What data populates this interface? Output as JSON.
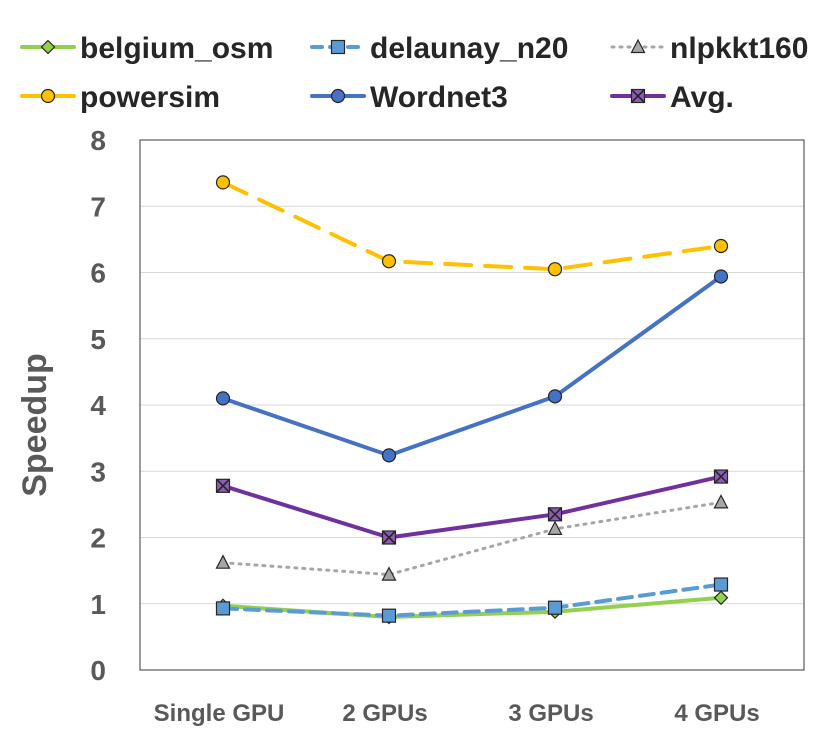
{
  "chart_data": {
    "type": "line",
    "title": "",
    "xlabel": "",
    "ylabel": "Speedup",
    "ylim": [
      0,
      8
    ],
    "yticks": [
      "0",
      "1",
      "2",
      "3",
      "4",
      "5",
      "6",
      "7",
      "8"
    ],
    "grid": true,
    "legend_position": "top",
    "categories": [
      "Single GPU",
      "2 GPUs",
      "3 GPUs",
      "4 GPUs"
    ],
    "series": [
      {
        "name": "belgium_osm",
        "values": [
          0.97,
          0.8,
          0.88,
          1.09
        ],
        "color": "#92d050",
        "marker": "diamond",
        "dash": "solid",
        "marker_fill": "#92d050"
      },
      {
        "name": "delaunay_n20",
        "values": [
          0.93,
          0.82,
          0.94,
          1.29
        ],
        "color": "#5b9bd5",
        "marker": "square",
        "dash": "dashed",
        "marker_fill": "#5b9bd5"
      },
      {
        "name": "nlpkkt160",
        "values": [
          1.62,
          1.44,
          2.13,
          2.53
        ],
        "color": "#a6a6a6",
        "marker": "triangle",
        "dash": "dotted",
        "marker_fill": "#a6a6a6"
      },
      {
        "name": "powersim",
        "values": [
          7.36,
          6.17,
          6.05,
          6.4
        ],
        "color": "#ffc000",
        "marker": "circle",
        "dash": "longdash",
        "marker_fill": "#ffc000"
      },
      {
        "name": "Wordnet3",
        "values": [
          4.1,
          3.24,
          4.13,
          5.94
        ],
        "color": "#4472c4",
        "marker": "circle",
        "dash": "solid",
        "marker_fill": "#4472c4"
      },
      {
        "name": "Avg.",
        "values": [
          2.78,
          2.0,
          2.35,
          2.92
        ],
        "color": "#7030a0",
        "marker": "xsquare",
        "dash": "solid",
        "marker_fill": "#8e5bb5"
      }
    ]
  }
}
